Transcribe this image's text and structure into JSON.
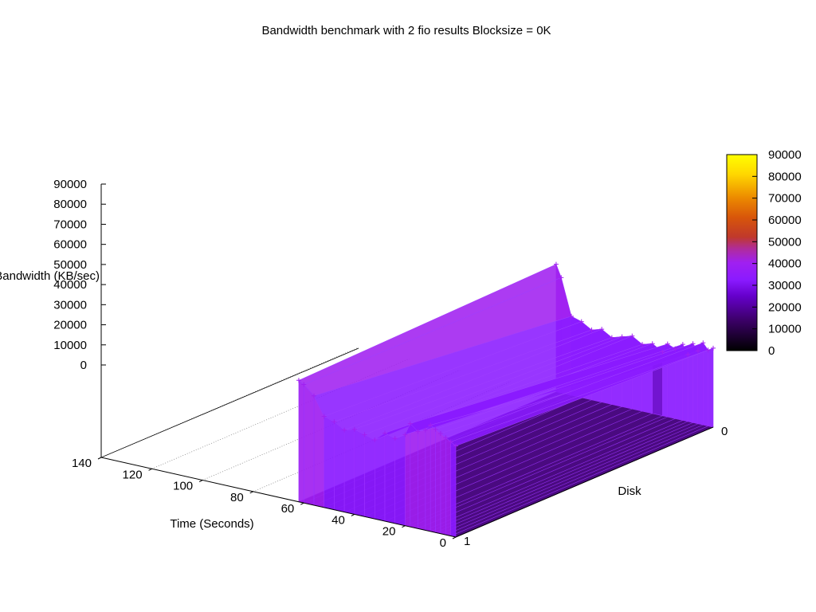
{
  "chart_data": {
    "type": "surface3d",
    "title": "Bandwidth benchmark with 2 fio results  Blocksize = 0K",
    "xlabel": "Time (Seconds)",
    "ylabel": "Disk",
    "zlabel": "Bandwidth (KB/sec)",
    "x_ticks": [
      "0",
      "20",
      "40",
      "60",
      "80",
      "100",
      "120",
      "140"
    ],
    "y_ticks": [
      "0",
      "1"
    ],
    "z_ticks": [
      "0",
      "10000",
      "20000",
      "30000",
      "40000",
      "50000",
      "60000",
      "70000",
      "80000",
      "90000"
    ],
    "colorbar_ticks": [
      "0",
      "10000",
      "20000",
      "30000",
      "40000",
      "50000",
      "60000",
      "70000",
      "80000",
      "90000"
    ],
    "xlim": [
      0,
      140
    ],
    "ylim": [
      0,
      1
    ],
    "zlim": [
      0,
      90000
    ],
    "grid": true,
    "series": [
      {
        "disk": 0,
        "x": [
          0,
          2,
          4,
          6,
          8,
          10,
          12,
          15,
          18,
          20,
          24,
          28,
          32,
          36,
          40,
          44,
          48,
          52,
          56,
          60,
          62
        ],
        "values": [
          26000,
          25000,
          27000,
          24000,
          26000,
          22000,
          25000,
          23000,
          24000,
          21000,
          23000,
          22000,
          24000,
          23000,
          22000,
          24000,
          23000,
          25000,
          26000,
          38000,
          42000
        ]
      },
      {
        "disk": 1,
        "x": [
          0,
          2,
          4,
          6,
          8,
          10,
          12,
          15,
          18,
          20,
          24,
          28,
          32,
          36,
          40,
          44,
          48,
          52,
          56,
          60,
          62
        ],
        "values": [
          30000,
          31000,
          32000,
          33000,
          34000,
          35000,
          33000,
          32000,
          34000,
          30000,
          28000,
          29000,
          26000,
          27000,
          28000,
          27000,
          29000,
          30000,
          36000,
          39000,
          40000
        ]
      }
    ],
    "colormap": [
      "#000000",
      "#3a0064",
      "#6600cc",
      "#8a1aff",
      "#a020f0",
      "#b02c9a",
      "#c0392b",
      "#d8560a",
      "#ec8a00",
      "#ffd700",
      "#ffff00"
    ]
  }
}
